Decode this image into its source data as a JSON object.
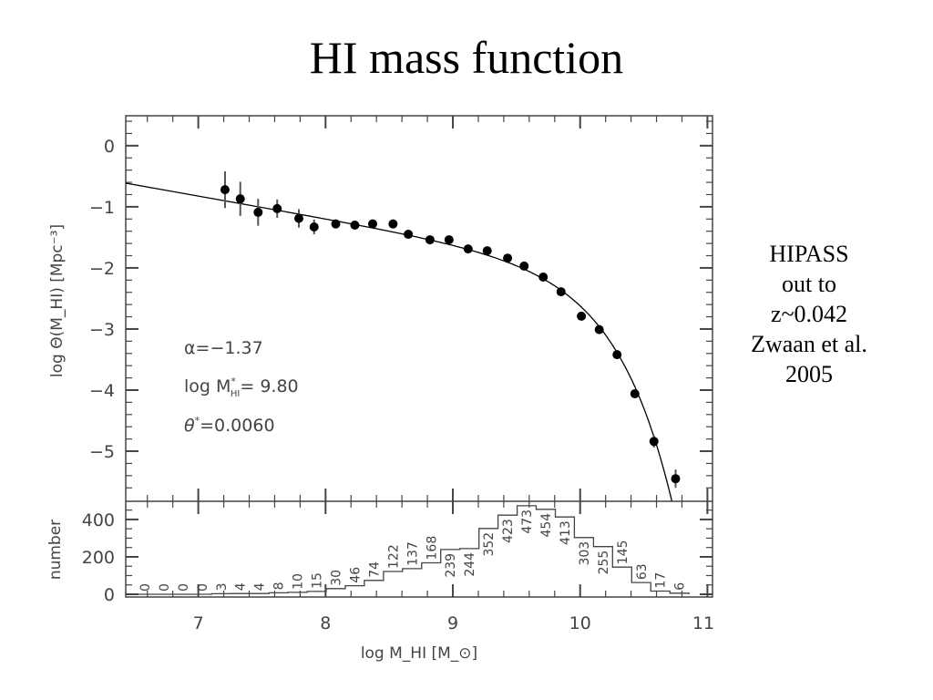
{
  "slide": {
    "title": "HI mass function",
    "side_note": [
      "HIPASS",
      "out to",
      "z~0.042",
      "Zwaan et al.",
      "2005"
    ]
  },
  "chart_data": [
    {
      "type": "scatter",
      "panel": "upper",
      "xlabel": "log M_HI [M_⊙]",
      "ylabel": "log Θ(M_HI) [Mpc⁻³]",
      "xlim": [
        6.43,
        11.04
      ],
      "ylim": [
        -5.82,
        0.49
      ],
      "xticks": [
        7,
        8,
        9,
        10,
        11
      ],
      "yticks": [
        0,
        -1,
        -2,
        -3,
        -4,
        -5
      ],
      "ytick_labels": [
        "0",
        "−1",
        "−2",
        "−3",
        "−4",
        "−5"
      ],
      "grid": false,
      "points": {
        "x": [
          7.21,
          7.33,
          7.47,
          7.62,
          7.79,
          7.91,
          8.08,
          8.23,
          8.37,
          8.53,
          8.65,
          8.82,
          8.97,
          9.12,
          9.27,
          9.43,
          9.56,
          9.71,
          9.85,
          10.01,
          10.15,
          10.29,
          10.43,
          10.58,
          10.75
        ],
        "y": [
          -0.72,
          -0.87,
          -1.09,
          -1.03,
          -1.19,
          -1.33,
          -1.28,
          -1.3,
          -1.28,
          -1.28,
          -1.45,
          -1.54,
          -1.54,
          -1.69,
          -1.72,
          -1.84,
          -1.97,
          -2.15,
          -2.39,
          -2.79,
          -3.01,
          -3.42,
          -4.06,
          -4.84,
          -5.45
        ],
        "yerr": [
          0.3,
          0.28,
          0.22,
          0.15,
          0.15,
          0.12,
          0.06,
          0.05,
          0.05,
          0.05,
          0.05,
          0.05,
          0.05,
          0.05,
          0.05,
          0.05,
          0.05,
          0.05,
          0.05,
          0.05,
          0.05,
          0.06,
          0.07,
          0.1,
          0.15
        ]
      },
      "fit": {
        "model": "Schechter",
        "alpha": -1.37,
        "log_mstar": 9.8,
        "theta_star": 0.006,
        "labels": {
          "alpha": "α=−1.37",
          "mstar_prefix": "log  M",
          "mstar_sup": "*",
          "mstar_sub": "HI",
          "mstar_value": "=  9.80",
          "theta": "θ",
          "theta_sup": "*",
          "theta_value": "=0.0060"
        }
      }
    },
    {
      "type": "bar",
      "style": "step-histogram",
      "panel": "lower",
      "ylabel": "number",
      "ylim": [
        0,
        497
      ],
      "yticks": [
        0,
        200,
        400
      ],
      "bin_width": 0.15,
      "bin_centers_start": 6.58,
      "values": [
        0,
        0,
        0,
        0,
        3,
        4,
        4,
        8,
        10,
        15,
        30,
        46,
        74,
        122,
        137,
        168,
        239,
        244,
        352,
        423,
        473,
        454,
        413,
        303,
        255,
        145,
        63,
        17,
        6
      ],
      "data_labels": [
        "0",
        "0",
        "0",
        "0",
        "3",
        "4",
        "4",
        "8",
        "10",
        "15",
        "30",
        "46",
        "74",
        "122",
        "137",
        "168",
        "239",
        "244",
        "352",
        "423",
        "473",
        "454",
        "413",
        "303",
        "255",
        "145",
        "63",
        "17",
        "6"
      ]
    }
  ],
  "colors": {
    "axis": "#444444",
    "marks": "#000000",
    "text": "#444444"
  }
}
